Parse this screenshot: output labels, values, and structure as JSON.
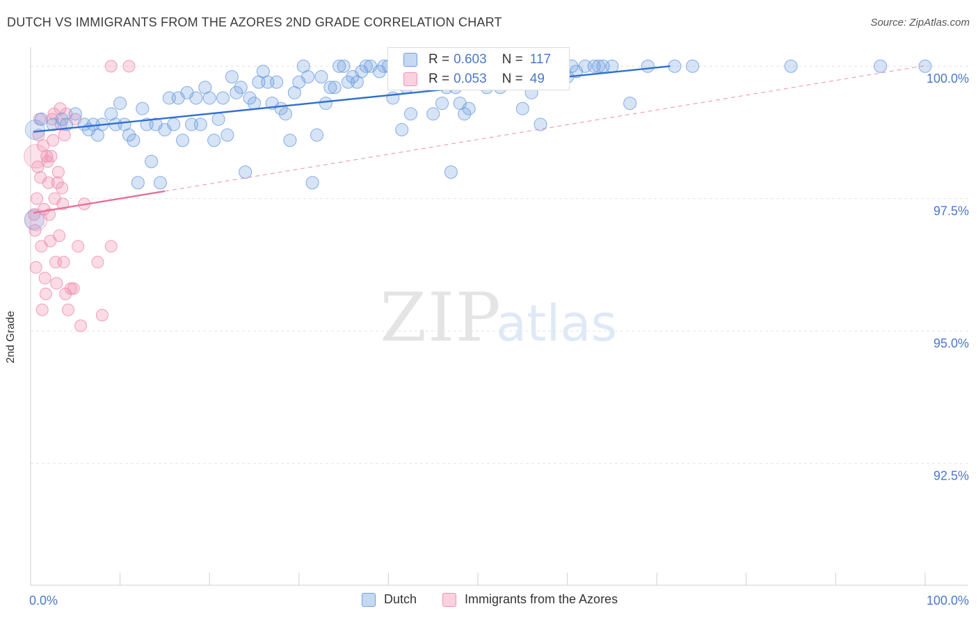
{
  "header": {
    "title": "DUTCH VS IMMIGRANTS FROM THE AZORES 2ND GRADE CORRELATION CHART",
    "source": "Source: ZipAtlas.com"
  },
  "watermark": {
    "zip": "ZIP",
    "atlas": "atlas"
  },
  "colors": {
    "dutch": "#6f9fe0",
    "azores": "#f08fb0",
    "dutch_line": "#2f6fd0",
    "azores_line": "#e8709a"
  },
  "stats": {
    "dutch": {
      "r_label": "R =",
      "r_value": "0.603",
      "n_label": "N =",
      "n_value": "117"
    },
    "azores": {
      "r_label": "R =",
      "r_value": "0.053",
      "n_label": "N =",
      "n_value": "49"
    }
  },
  "legend": {
    "dutch": "Dutch",
    "azores": "Immigrants from the Azores"
  },
  "chart_data": {
    "type": "scatter",
    "title": "DUTCH VS IMMIGRANTS FROM THE AZORES 2ND GRADE CORRELATION CHART",
    "xlabel": "",
    "ylabel": "2nd Grade",
    "xlim": [
      0,
      100
    ],
    "ylim": [
      90.2,
      100.2
    ],
    "y_ticks": [
      {
        "value": 100.0,
        "label": "100.0%"
      },
      {
        "value": 97.5,
        "label": "97.5%"
      },
      {
        "value": 95.0,
        "label": "95.0%"
      },
      {
        "value": 92.5,
        "label": "92.5%"
      }
    ],
    "x_tick_labels": {
      "min": "0.0%",
      "max": "100.0%"
    },
    "grid": true,
    "series": [
      {
        "name": "Dutch",
        "trend": {
          "x": [
            0.3,
            71.5
          ],
          "y": [
            98.76,
            100.0
          ]
        },
        "points": [
          [
            1.2,
            99.0
          ],
          [
            2.5,
            98.9
          ],
          [
            3.5,
            99.0
          ],
          [
            4.0,
            98.9
          ],
          [
            5.0,
            99.1
          ],
          [
            6.0,
            98.9
          ],
          [
            6.5,
            98.8
          ],
          [
            7.0,
            98.9
          ],
          [
            7.5,
            98.7
          ],
          [
            8.0,
            98.9
          ],
          [
            9.0,
            99.1
          ],
          [
            9.5,
            98.9
          ],
          [
            10.0,
            99.3
          ],
          [
            10.5,
            98.9
          ],
          [
            11.0,
            98.7
          ],
          [
            11.5,
            98.6
          ],
          [
            12.0,
            97.8
          ],
          [
            12.5,
            99.2
          ],
          [
            13.0,
            98.9
          ],
          [
            13.5,
            98.2
          ],
          [
            14.0,
            98.9
          ],
          [
            14.5,
            97.8
          ],
          [
            15.0,
            98.8
          ],
          [
            15.5,
            99.4
          ],
          [
            16.0,
            98.9
          ],
          [
            16.5,
            99.4
          ],
          [
            17.0,
            98.6
          ],
          [
            17.5,
            99.5
          ],
          [
            18.0,
            98.9
          ],
          [
            18.5,
            99.4
          ],
          [
            19.0,
            98.9
          ],
          [
            19.5,
            99.6
          ],
          [
            20.0,
            99.4
          ],
          [
            20.5,
            98.6
          ],
          [
            21.0,
            99.0
          ],
          [
            21.5,
            99.4
          ],
          [
            22.0,
            98.7
          ],
          [
            22.5,
            99.8
          ],
          [
            23.0,
            99.5
          ],
          [
            23.5,
            99.6
          ],
          [
            24.0,
            98.0
          ],
          [
            24.5,
            99.4
          ],
          [
            25.0,
            99.3
          ],
          [
            25.5,
            99.7
          ],
          [
            26.0,
            99.9
          ],
          [
            26.5,
            99.7
          ],
          [
            27.0,
            99.3
          ],
          [
            27.5,
            99.7
          ],
          [
            28.0,
            99.2
          ],
          [
            28.5,
            99.1
          ],
          [
            29.0,
            98.6
          ],
          [
            29.5,
            99.5
          ],
          [
            30.0,
            99.7
          ],
          [
            30.5,
            100.0
          ],
          [
            31.0,
            99.8
          ],
          [
            31.5,
            97.8
          ],
          [
            32.0,
            98.7
          ],
          [
            32.5,
            99.8
          ],
          [
            33.0,
            99.3
          ],
          [
            33.5,
            99.6
          ],
          [
            34.0,
            99.6
          ],
          [
            34.5,
            100.0
          ],
          [
            35.0,
            100.0
          ],
          [
            35.5,
            99.7
          ],
          [
            36.0,
            99.8
          ],
          [
            36.5,
            99.7
          ],
          [
            37.0,
            99.9
          ],
          [
            37.5,
            100.0
          ],
          [
            38.0,
            100.0
          ],
          [
            39.0,
            99.9
          ],
          [
            39.5,
            100.0
          ],
          [
            40.0,
            100.0
          ],
          [
            40.5,
            99.4
          ],
          [
            41.0,
            99.9
          ],
          [
            41.5,
            98.8
          ],
          [
            42.0,
            99.6
          ],
          [
            42.5,
            99.1
          ],
          [
            43.0,
            99.7
          ],
          [
            44.0,
            99.9
          ],
          [
            44.5,
            99.9
          ],
          [
            45.0,
            99.1
          ],
          [
            45.5,
            100.0
          ],
          [
            46.0,
            99.3
          ],
          [
            46.5,
            99.6
          ],
          [
            47.0,
            98.0
          ],
          [
            47.5,
            99.6
          ],
          [
            48.0,
            99.3
          ],
          [
            48.5,
            99.1
          ],
          [
            49.0,
            99.2
          ],
          [
            50.0,
            100.0
          ],
          [
            50.5,
            99.8
          ],
          [
            51.0,
            99.6
          ],
          [
            52.0,
            100.0
          ],
          [
            52.5,
            99.6
          ],
          [
            53.0,
            100.0
          ],
          [
            54.0,
            100.0
          ],
          [
            55.0,
            99.2
          ],
          [
            56.0,
            99.5
          ],
          [
            56.5,
            100.0
          ],
          [
            57.0,
            98.9
          ],
          [
            58.0,
            99.8
          ],
          [
            59.0,
            100.0
          ],
          [
            60.0,
            99.8
          ],
          [
            60.5,
            100.0
          ],
          [
            61.0,
            99.9
          ],
          [
            62.0,
            100.0
          ],
          [
            63.0,
            100.0
          ],
          [
            63.5,
            100.0
          ],
          [
            64.0,
            100.0
          ],
          [
            65.0,
            100.0
          ],
          [
            67.0,
            99.3
          ],
          [
            69.0,
            100.0
          ],
          [
            72.0,
            100.0
          ],
          [
            74.0,
            100.0
          ],
          [
            85.0,
            100.0
          ],
          [
            95.0,
            100.0
          ],
          [
            100.0,
            100.0
          ]
        ]
      },
      {
        "name": "Immigrants from the Azores",
        "trend": {
          "x": [
            0.3,
            15.0
          ],
          "y": [
            97.23,
            97.64
          ]
        },
        "points": [
          [
            0.4,
            97.2
          ],
          [
            0.5,
            96.9
          ],
          [
            0.6,
            96.2
          ],
          [
            0.7,
            97.5
          ],
          [
            0.8,
            98.1
          ],
          [
            0.9,
            98.7
          ],
          [
            1.0,
            99.0
          ],
          [
            1.1,
            97.9
          ],
          [
            1.2,
            96.6
          ],
          [
            1.3,
            95.4
          ],
          [
            1.4,
            98.5
          ],
          [
            1.5,
            97.3
          ],
          [
            1.6,
            96.0
          ],
          [
            1.7,
            95.7
          ],
          [
            1.8,
            98.3
          ],
          [
            1.9,
            98.2
          ],
          [
            2.0,
            97.8
          ],
          [
            2.1,
            97.2
          ],
          [
            2.2,
            96.7
          ],
          [
            2.3,
            98.3
          ],
          [
            2.4,
            99.0
          ],
          [
            2.5,
            98.6
          ],
          [
            2.6,
            99.1
          ],
          [
            2.7,
            97.5
          ],
          [
            2.8,
            96.3
          ],
          [
            2.9,
            95.9
          ],
          [
            3.0,
            97.8
          ],
          [
            3.1,
            98.0
          ],
          [
            3.2,
            96.8
          ],
          [
            3.3,
            99.2
          ],
          [
            3.4,
            98.9
          ],
          [
            3.5,
            97.7
          ],
          [
            3.6,
            97.4
          ],
          [
            3.7,
            96.3
          ],
          [
            3.8,
            98.7
          ],
          [
            3.9,
            95.7
          ],
          [
            4.0,
            99.1
          ],
          [
            4.2,
            95.4
          ],
          [
            4.5,
            95.8
          ],
          [
            4.8,
            95.8
          ],
          [
            5.0,
            99.0
          ],
          [
            5.3,
            96.6
          ],
          [
            5.6,
            95.1
          ],
          [
            6.0,
            97.4
          ],
          [
            7.5,
            96.3
          ],
          [
            8.0,
            95.3
          ],
          [
            9.0,
            96.6
          ],
          [
            9.0,
            100.0
          ],
          [
            11.0,
            100.0
          ]
        ]
      }
    ]
  }
}
